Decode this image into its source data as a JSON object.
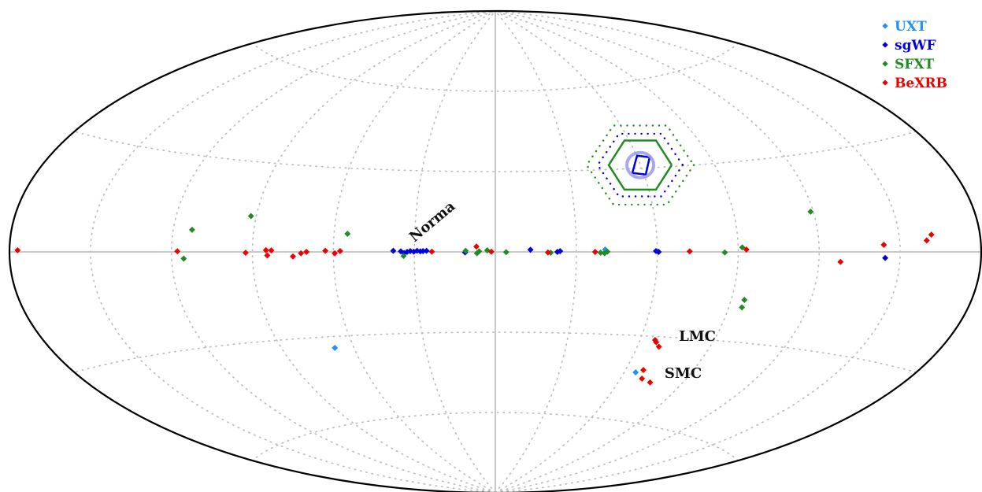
{
  "chart_data": {
    "type": "scatter",
    "projection": "aitoff",
    "coordinates": "galactic",
    "x_label": "",
    "y_label": "",
    "x_range_deg": [
      -180,
      180
    ],
    "y_range_deg": [
      -90,
      90
    ],
    "grid": true,
    "legend_position": "top-right",
    "series": [
      {
        "name": "UXT",
        "color": "#1e90ff",
        "points": [
          [
            -40.7,
            0.9
          ],
          [
            68.0,
            -34.0
          ],
          [
            -65.2,
            -43.0
          ]
        ]
      },
      {
        "name": "sgWF",
        "color": "#0000dd",
        "points": [
          [
            -144.5,
            -1.7
          ],
          [
            -60.5,
            0.0
          ],
          [
            -59.5,
            0.3
          ],
          [
            -24.0,
            0.3
          ],
          [
            -23.0,
            0.0
          ],
          [
            -13.0,
            0.8
          ],
          [
            11.2,
            -0.2
          ],
          [
            25.5,
            0.4
          ],
          [
            26.8,
            0.3
          ],
          [
            27.8,
            0.2
          ],
          [
            29.0,
            0.4
          ],
          [
            30.2,
            0.1
          ],
          [
            31.5,
            0.3
          ],
          [
            32.7,
            0.0
          ],
          [
            33.8,
            -0.4
          ],
          [
            35.0,
            0.2
          ],
          [
            37.8,
            0.4
          ]
        ]
      },
      {
        "name": "SFXT",
        "color": "#228b22",
        "points": [
          [
            -85.0,
            -0.2
          ],
          [
            -41.5,
            0.1
          ],
          [
            -40.5,
            -0.5
          ],
          [
            -39.0,
            -0.3
          ],
          [
            -20.5,
            -0.3
          ],
          [
            -4.0,
            -0.1
          ],
          [
            3.0,
            0.6
          ],
          [
            6.0,
            0.2
          ],
          [
            6.8,
            -0.5
          ],
          [
            11.0,
            0.4
          ],
          [
            34.0,
            -1.5
          ],
          [
            -91.5,
            1.5
          ],
          [
            -119.0,
            12.5
          ],
          [
            -95.0,
            -16.0
          ],
          [
            55.0,
            6.5
          ],
          [
            92.0,
            12.0
          ],
          [
            113.0,
            7.0
          ],
          [
            115.5,
            -2.1
          ],
          [
            -95.0,
            -18.5
          ]
        ]
      },
      {
        "name": "BeXRB",
        "color": "#ee0000",
        "points": [
          [
            -162.0,
            4.5
          ],
          [
            -160.0,
            3.0
          ],
          [
            -144.0,
            2.0
          ],
          [
            -128.0,
            -3.0
          ],
          [
            -93.0,
            0.8
          ],
          [
            -72.0,
            0.2
          ],
          [
            -37.0,
            0.0
          ],
          [
            -19.5,
            -0.2
          ],
          [
            1.5,
            0.1
          ],
          [
            7.0,
            2.0
          ],
          [
            23.5,
            0.1
          ],
          [
            57.5,
            0.3
          ],
          [
            59.5,
            -0.5
          ],
          [
            63.0,
            0.4
          ],
          [
            70.0,
            0.0
          ],
          [
            72.0,
            -0.5
          ],
          [
            75.0,
            -1.6
          ],
          [
            83.0,
            0.5
          ],
          [
            84.5,
            -1.2
          ],
          [
            92.5,
            -0.3
          ],
          [
            117.8,
            0.2
          ],
          [
            177.0,
            0.4
          ],
          [
            85.0,
            0.6
          ],
          [
            -75.0,
            -46.0
          ],
          [
            -70.0,
            -45.0
          ],
          [
            -68.0,
            -42.0
          ],
          [
            -69.0,
            -33.5
          ],
          [
            -67.0,
            -32.0
          ],
          [
            -66.2,
            -31.3
          ]
        ]
      }
    ],
    "annotations": [
      {
        "text": "Norma",
        "at": [
          30.0,
          3.5
        ]
      },
      {
        "text": "LMC",
        "at": [
          -76.0,
          -31.0
        ]
      },
      {
        "text": "SMC",
        "at": [
          -80.0,
          -44.0
        ]
      }
    ],
    "overlays": [
      {
        "kind": "inner-square",
        "color": "#0000dd",
        "center": [
          -59.0,
          32.0
        ]
      },
      {
        "kind": "circle",
        "color": "#9999ee",
        "center": [
          -59.0,
          32.0
        ]
      },
      {
        "kind": "hexagon",
        "color": "#228b22",
        "center": [
          -59.0,
          32.0
        ]
      },
      {
        "kind": "dotted-ring",
        "color": "#0000dd",
        "center": [
          -59.0,
          32.0
        ]
      },
      {
        "kind": "dotted-ring",
        "color": "#228b22",
        "center": [
          -59.0,
          32.0
        ]
      }
    ]
  }
}
